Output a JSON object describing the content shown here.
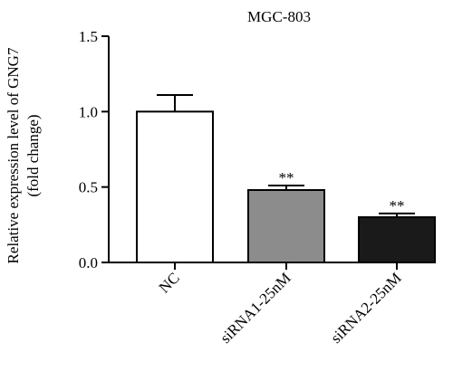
{
  "chart_data": {
    "type": "bar",
    "title": "MGC-803",
    "ylabel": [
      "Relative expression level of GNG7",
      "(fold change)"
    ],
    "xlabel": "",
    "ylim": [
      0,
      1.5
    ],
    "yticks": [
      "0.0",
      "0.5",
      "1.0",
      "1.5"
    ],
    "categories": [
      "NC",
      "siRNA1-25nM",
      "siRNA2-25nM"
    ],
    "values": [
      1.0,
      0.48,
      0.3
    ],
    "errors": [
      0.11,
      0.03,
      0.025
    ],
    "significance": [
      "",
      "**",
      "**"
    ],
    "colors": [
      "#ffffff",
      "#8c8c8c",
      "#1a1a1a"
    ],
    "grid": false,
    "legend": "none"
  }
}
